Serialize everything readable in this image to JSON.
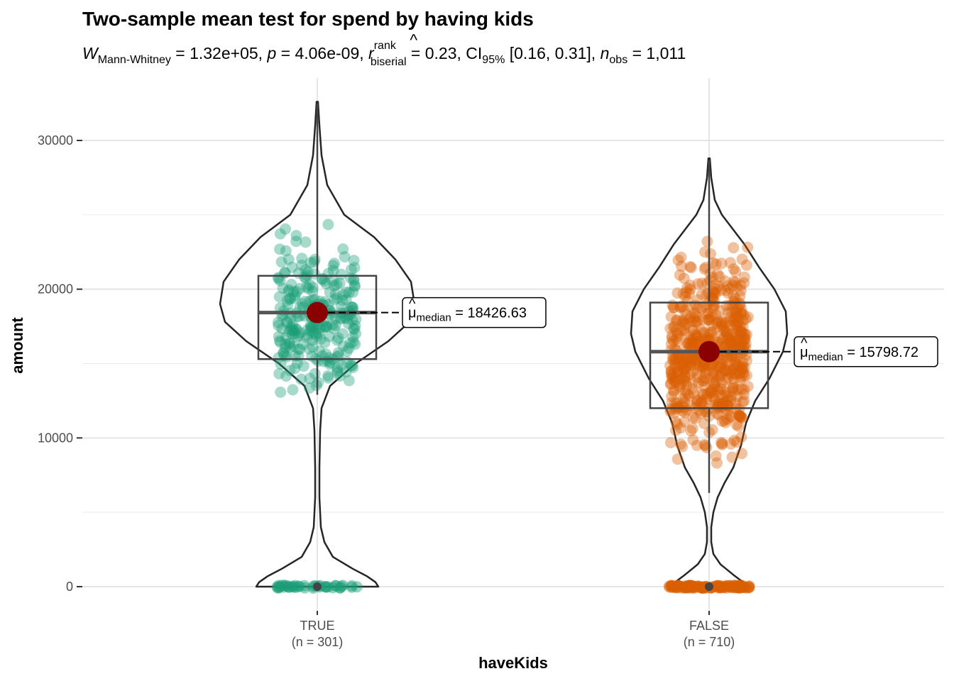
{
  "chart_data": {
    "type": "violin-box-scatter",
    "title": "Two-sample mean test for spend by having kids",
    "subtitle": {
      "w_label": "W",
      "w_sub": "Mann-Whitney",
      "w_val": " = 1.32e+05, ",
      "p_label": "p",
      "p_val": " = 4.06e-09, ",
      "r_label": "r",
      "r_sup": "rank",
      "r_sub": "biserial",
      "r_val": " = 0.23, ",
      "ci_label": "CI",
      "ci_sub": "95%",
      "ci_val": " [0.16, 0.31], ",
      "n_label": "n",
      "n_sub": "obs",
      "n_val": " = 1,011"
    },
    "xlabel": "haveKids",
    "ylabel": "amount",
    "ylim": [
      -1000,
      33000
    ],
    "yticks": [
      0,
      10000,
      20000,
      30000
    ],
    "ytick_labels": [
      "0",
      "10000",
      "20000",
      "30000"
    ],
    "grid": true,
    "groups": [
      {
        "category": "TRUE",
        "n_label": "(n = 301)",
        "n": 301,
        "color": "#1B9E77",
        "box": {
          "q1": 15300,
          "median": 18426.63,
          "q3": 20900,
          "whisker_low": 12900,
          "whisker_high": 32500
        },
        "median_label_prefix": "μ",
        "median_label_sub": "median",
        "median_label_value": " = 18426.63",
        "zero_count": 40,
        "y_min": 12700,
        "y_max": 32600
      },
      {
        "category": "FALSE",
        "n_label": "(n = 710)",
        "n": 710,
        "color": "#D95F02",
        "box": {
          "q1": 12000,
          "median": 15798.72,
          "q3": 19100,
          "whisker_low": 6300,
          "whisker_high": 28700
        },
        "median_label_prefix": "μ",
        "median_label_sub": "median",
        "median_label_value": " = 15798.72",
        "zero_count": 120,
        "y_min": 6300,
        "y_max": 28900
      }
    ],
    "colors": {
      "median_point": "#8B0000",
      "box": "#333333",
      "violin": "#262626"
    }
  }
}
